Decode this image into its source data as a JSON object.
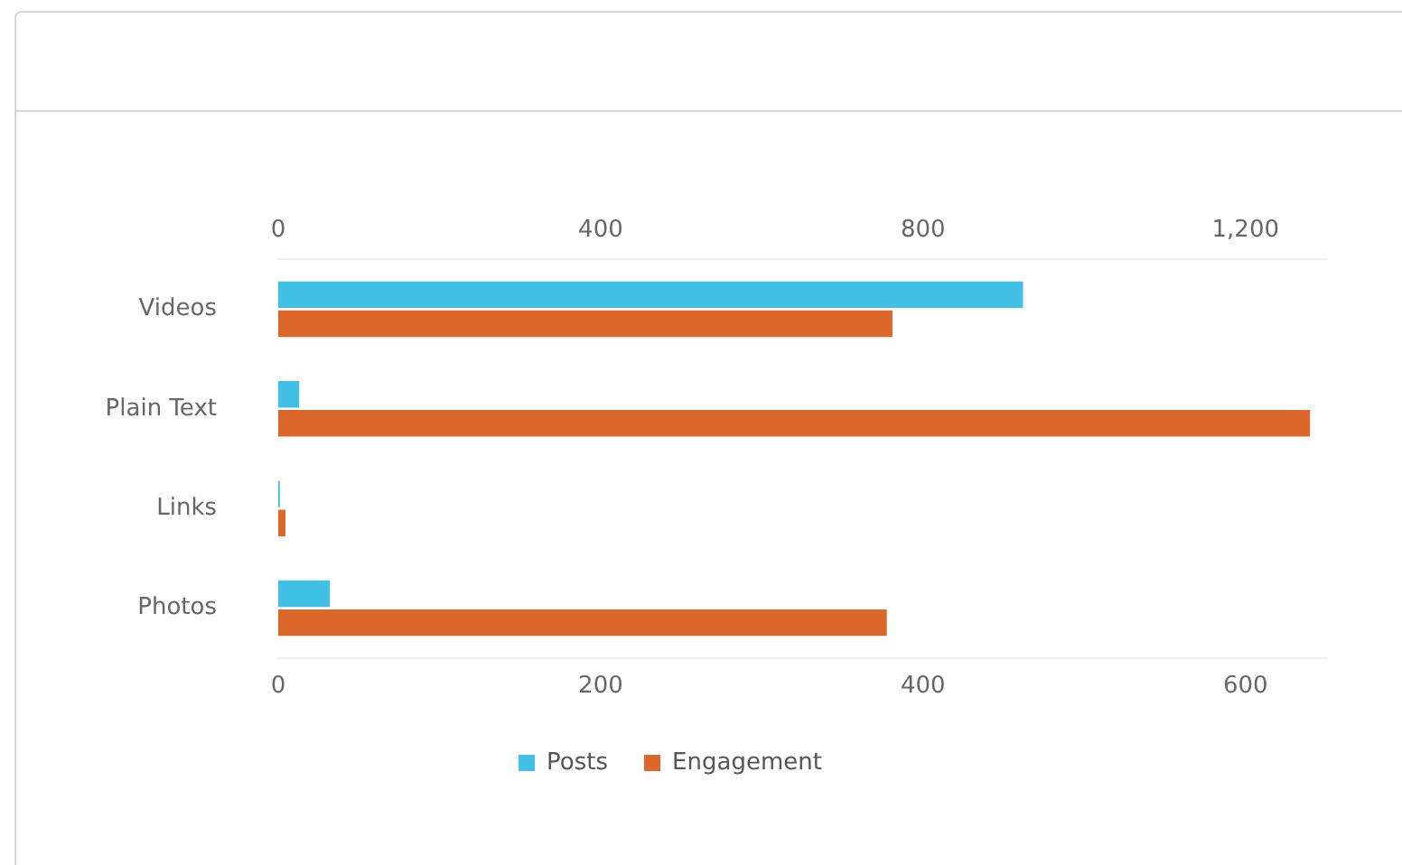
{
  "chart_data": {
    "type": "bar",
    "orientation": "horizontal",
    "categories": [
      "Videos",
      "Plain Text",
      "Links",
      "Photos"
    ],
    "series": [
      {
        "name": "Posts",
        "color": "#40c0e4",
        "values": [
          462,
          13,
          1,
          32
        ]
      },
      {
        "name": "Engagement",
        "color": "#dc672b",
        "axis": "x2",
        "values": [
          762,
          1280,
          9,
          755
        ]
      }
    ],
    "xlim": [
      0,
      650
    ],
    "xticks": [
      0,
      200,
      400,
      600
    ],
    "x2lim": [
      0,
      1300
    ],
    "x2ticks": [
      0,
      400,
      800,
      {
        "value": 1200,
        "label": "1,200"
      }
    ],
    "grid": false,
    "legend": "bottom"
  }
}
